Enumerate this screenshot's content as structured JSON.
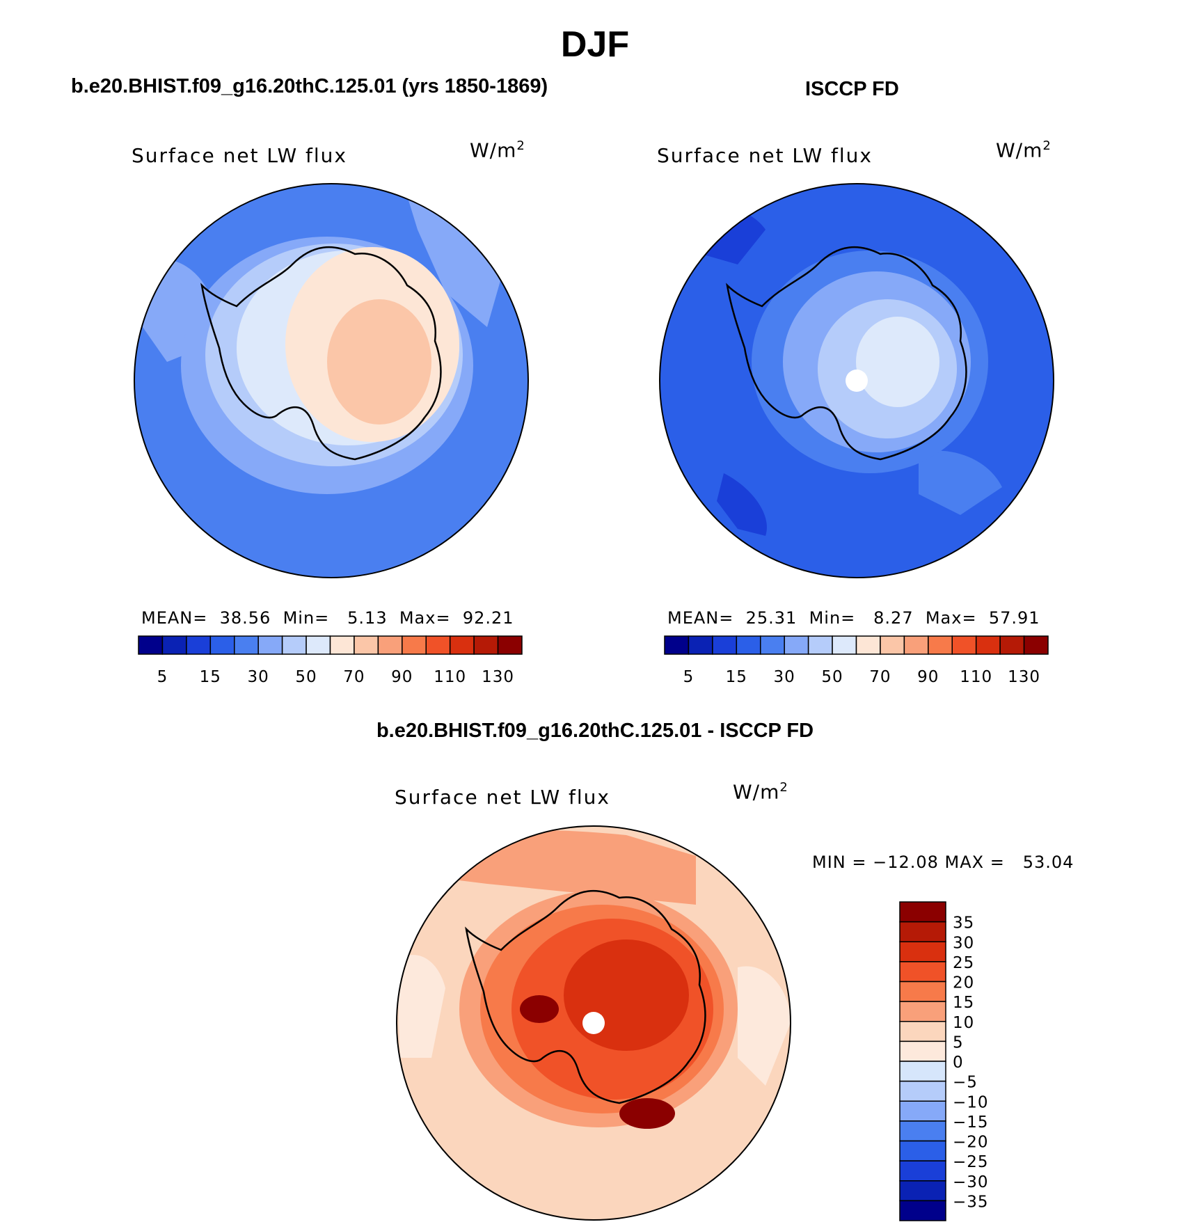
{
  "title": "DJF",
  "panels": {
    "model": {
      "header": "b.e20.BHIST.f09_g16.20thC.125.01 (yrs 1850-1869)",
      "variable": "Surface net LW flux",
      "units": "W/m",
      "units_sup": "2",
      "stats": "MEAN=  38.56  Min=   5.13  Max=  92.21",
      "mean": 38.56,
      "min": 5.13,
      "max": 92.21
    },
    "obs": {
      "header": "ISCCP FD",
      "variable": "Surface net LW flux",
      "units": "W/m",
      "units_sup": "2",
      "stats": "MEAN=  25.31  Min=   8.27  Max=  57.91",
      "mean": 25.31,
      "min": 8.27,
      "max": 57.91
    },
    "diff": {
      "header": "b.e20.BHIST.f09_g16.20thC.125.01 - ISCCP FD",
      "variable": "Surface net LW flux",
      "units": "W/m",
      "units_sup": "2",
      "stats": "MIN = −12.08 MAX =   53.04",
      "min": -12.08,
      "max": 53.04
    }
  },
  "colorbar_abs": {
    "colors": [
      "#00008b",
      "#0a22b4",
      "#1a3fd8",
      "#2b5fe8",
      "#4a7ff0",
      "#86a9f8",
      "#b5ccfa",
      "#dde9fb",
      "#fde6d6",
      "#fbc6a8",
      "#f9a07a",
      "#f77a4a",
      "#f05228",
      "#d9300f",
      "#b51a06",
      "#8b0000"
    ],
    "labels": [
      "5",
      "15",
      "30",
      "50",
      "70",
      "90",
      "110",
      "130"
    ]
  },
  "colorbar_diff": {
    "colors": [
      "#8b0000",
      "#b51a06",
      "#d9300f",
      "#f05228",
      "#f77a4a",
      "#f9a07a",
      "#fbd6bd",
      "#fde9dc",
      "#d6e6fb",
      "#b5ccfa",
      "#86a9f8",
      "#4a7ff0",
      "#2b5fe8",
      "#1a3fd8",
      "#0a22b4",
      "#00008b"
    ],
    "labels": [
      "35",
      "30",
      "25",
      "20",
      "15",
      "10",
      "5",
      "0",
      "−5",
      "−10",
      "−15",
      "−20",
      "−25",
      "−30",
      "−35"
    ]
  }
}
